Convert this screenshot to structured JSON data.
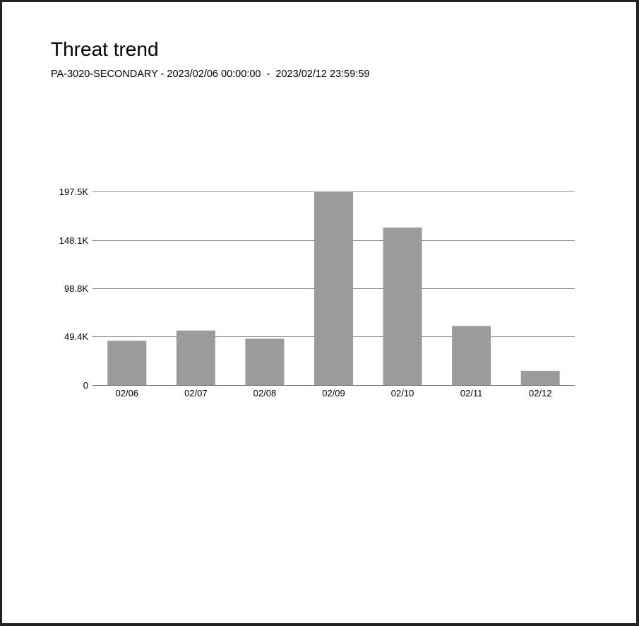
{
  "report": {
    "title": "Threat trend",
    "device": "PA-3020-SECONDARY",
    "range_start": "2023/02/06 00:00:00",
    "range_end": "2023/02/12 23:59:59"
  },
  "chart_data": {
    "type": "bar",
    "categories": [
      "02/06",
      "02/07",
      "02/08",
      "02/09",
      "02/10",
      "02/11",
      "02/12"
    ],
    "values": [
      45200,
      55600,
      47300,
      197500,
      160700,
      60300,
      14500
    ],
    "yticks": [
      0,
      49400,
      98800,
      148100,
      197500
    ],
    "ytick_labels": [
      "0",
      "49.4K",
      "98.8K",
      "148.1K",
      "197.5K"
    ],
    "ylim": [
      0,
      197500
    ],
    "grid": true,
    "bar_color": "#9b9b9b",
    "grid_color": "#8c8c8c"
  }
}
